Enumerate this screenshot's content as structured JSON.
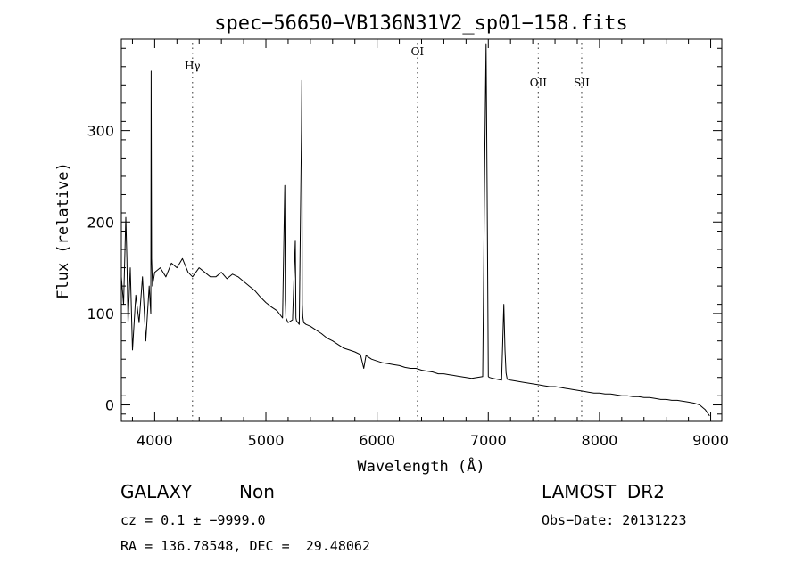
{
  "chart_data": {
    "type": "line",
    "title": "spec−56650−VB136N31V2_sp01−158.fits",
    "xlabel": "Wavelength (Å)",
    "ylabel": "Flux (relative)",
    "xlim": [
      3700,
      9100
    ],
    "ylim": [
      -18,
      400
    ],
    "x_ticks": [
      4000,
      5000,
      6000,
      7000,
      8000,
      9000
    ],
    "y_ticks": [
      0,
      100,
      200,
      300
    ],
    "grid": false,
    "reference_lines": [
      {
        "label": "Hγ",
        "x": 4340
      },
      {
        "label": "OI",
        "x": 6363
      },
      {
        "label": "OII",
        "x": 7450
      },
      {
        "label": "SII",
        "x": 7840
      }
    ],
    "series": [
      {
        "x": [
          3700,
          3720,
          3740,
          3750,
          3760,
          3780,
          3800,
          3830,
          3860,
          3890,
          3920,
          3950,
          3965,
          3968,
          3972,
          3980,
          4000,
          4050,
          4100,
          4150,
          4200,
          4250,
          4300,
          4340,
          4400,
          4450,
          4500,
          4550,
          4600,
          4650,
          4700,
          4750,
          4800,
          4850,
          4900,
          4950,
          5000,
          5050,
          5100,
          5150,
          5170,
          5175,
          5180,
          5200,
          5240,
          5265,
          5270,
          5275,
          5300,
          5320,
          5323,
          5327,
          5332,
          5340,
          5360,
          5400,
          5450,
          5500,
          5550,
          5600,
          5650,
          5700,
          5750,
          5800,
          5850,
          5880,
          5900,
          5950,
          6000,
          6050,
          6100,
          6150,
          6200,
          6250,
          6300,
          6350,
          6400,
          6450,
          6500,
          6550,
          6600,
          6650,
          6700,
          6750,
          6800,
          6850,
          6900,
          6950,
          6970,
          6980,
          6990,
          7000,
          7010,
          7040,
          7080,
          7120,
          7140,
          7150,
          7160,
          7170,
          7200,
          7250,
          7300,
          7350,
          7400,
          7450,
          7500,
          7550,
          7600,
          7650,
          7700,
          7750,
          7800,
          7850,
          7900,
          7950,
          8000,
          8050,
          8100,
          8150,
          8200,
          8250,
          8300,
          8350,
          8400,
          8450,
          8500,
          8550,
          8600,
          8650,
          8700,
          8750,
          8800,
          8850,
          8900,
          8950,
          8990
        ],
        "y": [
          140,
          110,
          205,
          160,
          90,
          150,
          60,
          120,
          90,
          140,
          70,
          130,
          100,
          365,
          160,
          130,
          145,
          150,
          140,
          155,
          150,
          160,
          145,
          140,
          150,
          145,
          140,
          140,
          145,
          138,
          143,
          140,
          135,
          130,
          125,
          118,
          112,
          107,
          103,
          95,
          240,
          115,
          95,
          90,
          93,
          180,
          95,
          92,
          88,
          300,
          355,
          110,
          96,
          90,
          88,
          86,
          82,
          78,
          73,
          70,
          66,
          62,
          60,
          58,
          55,
          40,
          54,
          50,
          48,
          46,
          45,
          44,
          43,
          41,
          40,
          40,
          38,
          37,
          36,
          34,
          34,
          33,
          32,
          31,
          30,
          29,
          30,
          31,
          285,
          395,
          230,
          31,
          30,
          29,
          28,
          27,
          110,
          60,
          35,
          28,
          27,
          26,
          25,
          24,
          23,
          22,
          21,
          20,
          20,
          19,
          18,
          17,
          16,
          15,
          14,
          13,
          13,
          12,
          12,
          11,
          10,
          10,
          9,
          9,
          8,
          8,
          7,
          6,
          6,
          5,
          5,
          4,
          3,
          2,
          0,
          -5,
          -12
        ]
      }
    ]
  },
  "info": {
    "class": "GALAXY",
    "subclass": "Non",
    "survey": "LAMOST  DR2",
    "cz": "cz = 0.1 ± −9999.0",
    "obs_date": "Obs−Date: 20131223",
    "radec": "RA = 136.78548, DEC =  29.48062"
  }
}
